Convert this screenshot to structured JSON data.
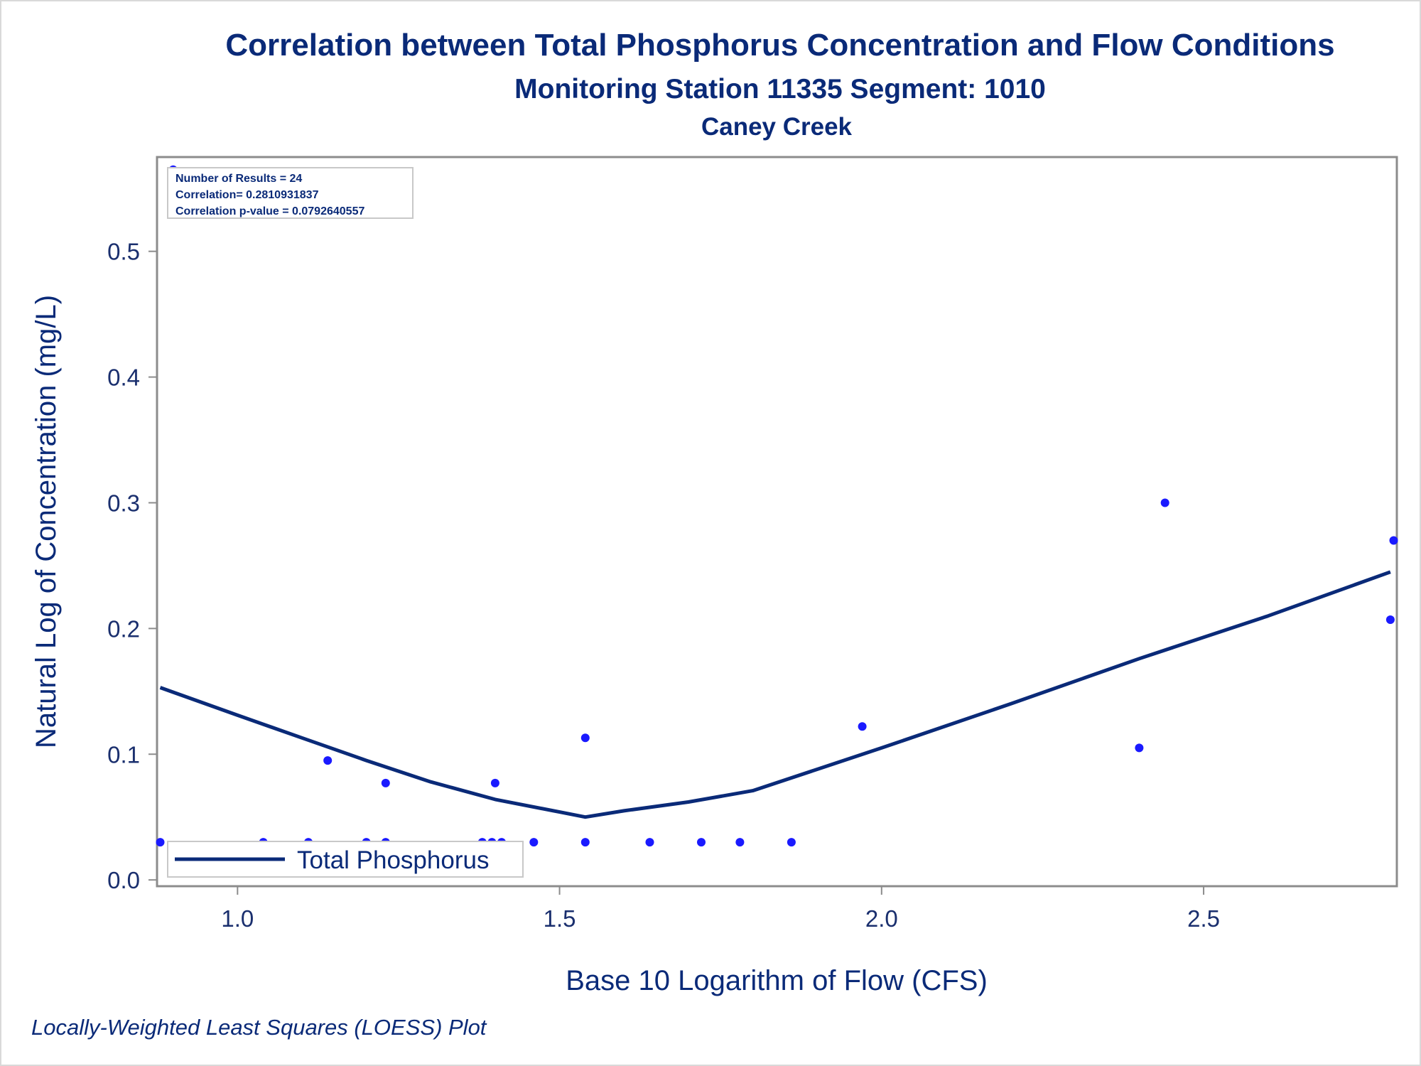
{
  "chart_data": {
    "type": "scatter",
    "title": "Correlation between Total Phosphorus Concentration and Flow Conditions",
    "subtitle": "Monitoring Station 11335 Segment: 1010",
    "subtitle2": "Caney Creek",
    "xlabel": "Base 10 Logarithm of Flow (CFS)",
    "ylabel": "Natural Log of Concentration (mg/L)",
    "xlim": [
      0.875,
      2.8
    ],
    "ylim": [
      -0.005,
      0.575
    ],
    "x_ticks": [
      1.0,
      1.5,
      2.0,
      2.5
    ],
    "x_tick_labels": [
      "1.0",
      "1.5",
      "2.0",
      "2.5"
    ],
    "y_ticks": [
      0.0,
      0.1,
      0.2,
      0.3,
      0.4,
      0.5
    ],
    "y_tick_labels": [
      "0.0",
      "0.1",
      "0.2",
      "0.3",
      "0.4",
      "0.5"
    ],
    "grid": false,
    "legend_position": "bottom-left",
    "stats": [
      "Number of Results = 24",
      "Correlation= 0.2810931837",
      "Correlation p-value = 0.0792640557"
    ],
    "footnote": "Locally-Weighted Least Squares (LOESS) Plot",
    "points": [
      {
        "x": 0.9,
        "y": 0.565
      },
      {
        "x": 0.88,
        "y": 0.03
      },
      {
        "x": 1.04,
        "y": 0.03
      },
      {
        "x": 1.11,
        "y": 0.03
      },
      {
        "x": 1.14,
        "y": 0.095
      },
      {
        "x": 1.2,
        "y": 0.03
      },
      {
        "x": 1.23,
        "y": 0.03
      },
      {
        "x": 1.23,
        "y": 0.077
      },
      {
        "x": 1.38,
        "y": 0.03
      },
      {
        "x": 1.395,
        "y": 0.03
      },
      {
        "x": 1.4,
        "y": 0.077
      },
      {
        "x": 1.41,
        "y": 0.03
      },
      {
        "x": 1.46,
        "y": 0.03
      },
      {
        "x": 1.54,
        "y": 0.03
      },
      {
        "x": 1.54,
        "y": 0.113
      },
      {
        "x": 1.64,
        "y": 0.03
      },
      {
        "x": 1.72,
        "y": 0.03
      },
      {
        "x": 1.78,
        "y": 0.03
      },
      {
        "x": 1.86,
        "y": 0.03
      },
      {
        "x": 1.97,
        "y": 0.122
      },
      {
        "x": 2.4,
        "y": 0.105
      },
      {
        "x": 2.44,
        "y": 0.3
      },
      {
        "x": 2.79,
        "y": 0.207
      },
      {
        "x": 2.795,
        "y": 0.27
      }
    ],
    "series": [
      {
        "name": "Total Phosphorus",
        "x": [
          0.88,
          1.0,
          1.1,
          1.2,
          1.3,
          1.4,
          1.5,
          1.54,
          1.6,
          1.7,
          1.8,
          1.9,
          2.0,
          2.2,
          2.4,
          2.6,
          2.79
        ],
        "y": [
          0.153,
          0.131,
          0.113,
          0.095,
          0.078,
          0.064,
          0.054,
          0.05,
          0.055,
          0.062,
          0.071,
          0.088,
          0.105,
          0.14,
          0.176,
          0.21,
          0.245
        ]
      }
    ]
  },
  "colors": {
    "text": "#0a2a78",
    "line": "#0a2a78",
    "marker": "#1a1aff",
    "frame": "#8c8c8c"
  }
}
